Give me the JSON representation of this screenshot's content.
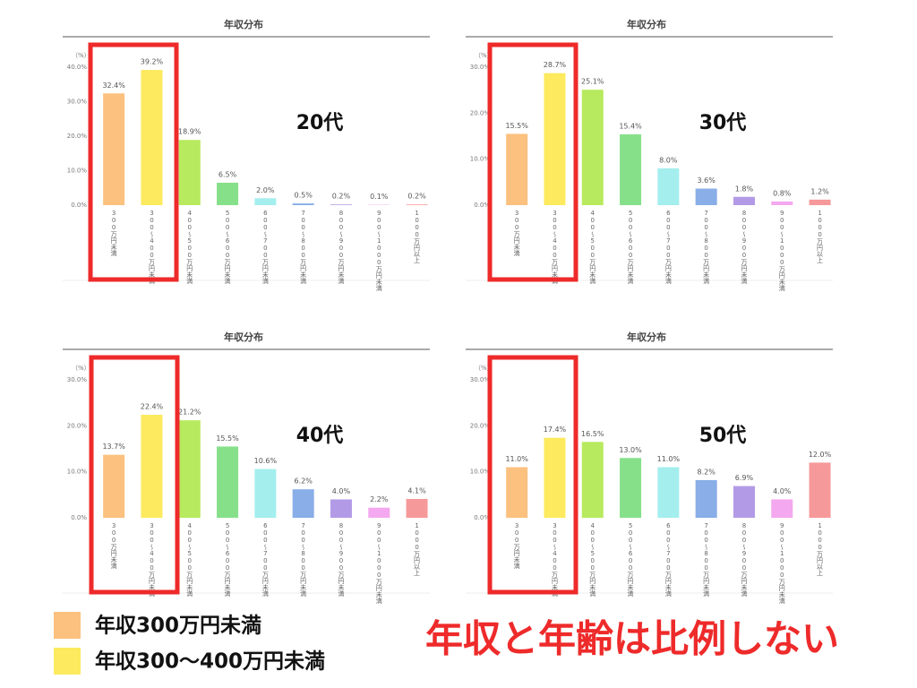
{
  "chart_data": [
    {
      "type": "bar",
      "title": "年収分布",
      "y_unit": "（%）",
      "annotation": "20代",
      "categories": [
        "300万円未満",
        "300〜400万円未満",
        "400〜500万円未満",
        "500〜600万円未満",
        "600〜700万円未満",
        "700〜800万円未満",
        "800〜900万円未満",
        "900〜1000万円未満",
        "1000万円以上"
      ],
      "values": [
        32.4,
        39.2,
        18.9,
        6.5,
        2.0,
        0.5,
        0.2,
        0.1,
        0.2
      ],
      "value_labels": [
        "32.4%",
        "39.2%",
        "18.9%",
        "6.5%",
        "2.0%",
        "0.5%",
        "0.2%",
        "0.1%",
        "0.2%"
      ],
      "colors": [
        "#fcc07f",
        "#fdea5e",
        "#b7ea5e",
        "#86e08a",
        "#a4eeee",
        "#89aee8",
        "#b39ae6",
        "#f4a8ef",
        "#f6999a"
      ],
      "ylim": [
        0,
        40
      ],
      "yticks": [
        {
          "value": 0,
          "label": "0.0%"
        },
        {
          "value": 10,
          "label": "10.0%"
        },
        {
          "value": 20,
          "label": "20.0%"
        },
        {
          "value": 30,
          "label": "30.0%"
        },
        {
          "value": 40,
          "label": "40.0%"
        }
      ],
      "grid": false
    },
    {
      "type": "bar",
      "title": "年収分布",
      "y_unit": "（%）",
      "annotation": "30代",
      "categories": [
        "300万円未満",
        "300〜400万円未満",
        "400〜500万円未満",
        "500〜600万円未満",
        "600〜700万円未満",
        "700〜800万円未満",
        "800〜900万円未満",
        "900〜1000万円未満",
        "1000万円以上"
      ],
      "values": [
        15.5,
        28.7,
        25.1,
        15.4,
        8.0,
        3.6,
        1.8,
        0.8,
        1.2
      ],
      "value_labels": [
        "15.5%",
        "28.7%",
        "25.1%",
        "15.4%",
        "8.0%",
        "3.6%",
        "1.8%",
        "0.8%",
        "1.2%"
      ],
      "colors": [
        "#fcc07f",
        "#fdea5e",
        "#b7ea5e",
        "#86e08a",
        "#a4eeee",
        "#89aee8",
        "#b39ae6",
        "#f4a8ef",
        "#f6999a"
      ],
      "ylim": [
        0,
        30
      ],
      "yticks": [
        {
          "value": 0,
          "label": "0.0%"
        },
        {
          "value": 10,
          "label": "10.0%"
        },
        {
          "value": 20,
          "label": "20.0%"
        },
        {
          "value": 30,
          "label": "30.0%"
        }
      ],
      "grid": false
    },
    {
      "type": "bar",
      "title": "年収分布",
      "y_unit": "（%）",
      "annotation": "40代",
      "categories": [
        "300万円未満",
        "300〜400万円未満",
        "400〜500万円未満",
        "500〜600万円未満",
        "600〜700万円未満",
        "700〜800万円未満",
        "800〜900万円未満",
        "900〜1000万円未満",
        "1000万円以上"
      ],
      "values": [
        13.7,
        22.4,
        21.2,
        15.5,
        10.6,
        6.2,
        4.0,
        2.2,
        4.1
      ],
      "value_labels": [
        "13.7%",
        "22.4%",
        "21.2%",
        "15.5%",
        "10.6%",
        "6.2%",
        "4.0%",
        "2.2%",
        "4.1%"
      ],
      "colors": [
        "#fcc07f",
        "#fdea5e",
        "#b7ea5e",
        "#86e08a",
        "#a4eeee",
        "#89aee8",
        "#b39ae6",
        "#f4a8ef",
        "#f6999a"
      ],
      "ylim": [
        0,
        30
      ],
      "yticks": [
        {
          "value": 0,
          "label": "0.0%"
        },
        {
          "value": 10,
          "label": "10.0%"
        },
        {
          "value": 20,
          "label": "20.0%"
        },
        {
          "value": 30,
          "label": "30.0%"
        }
      ],
      "grid": false
    },
    {
      "type": "bar",
      "title": "年収分布",
      "y_unit": "（%）",
      "annotation": "50代",
      "categories": [
        "300万円未満",
        "300〜400万円未満",
        "400〜500万円未満",
        "500〜600万円未満",
        "600〜700万円未満",
        "700〜800万円未満",
        "800〜900万円未満",
        "900〜1000万円未満",
        "1000万円以上"
      ],
      "values": [
        11.0,
        17.4,
        16.5,
        13.0,
        11.0,
        8.2,
        6.9,
        4.0,
        12.0
      ],
      "value_labels": [
        "11.0%",
        "17.4%",
        "16.5%",
        "13.0%",
        "11.0%",
        "8.2%",
        "6.9%",
        "4.0%",
        "12.0%"
      ],
      "colors": [
        "#fcc07f",
        "#fdea5e",
        "#b7ea5e",
        "#86e08a",
        "#a4eeee",
        "#89aee8",
        "#b39ae6",
        "#f4a8ef",
        "#f6999a"
      ],
      "ylim": [
        0,
        30
      ],
      "yticks": [
        {
          "value": 0,
          "label": "0.0%"
        },
        {
          "value": 10,
          "label": "10.0%"
        },
        {
          "value": 20,
          "label": "20.0%"
        },
        {
          "value": 30,
          "label": "30.0%"
        }
      ],
      "grid": false
    }
  ],
  "legend": [
    {
      "name": "年収300万円未満",
      "color": "#fcc07f"
    },
    {
      "name": "年収300〜400万円未満",
      "color": "#fdea5e"
    }
  ],
  "headline": "年収と年齢は比例しない"
}
